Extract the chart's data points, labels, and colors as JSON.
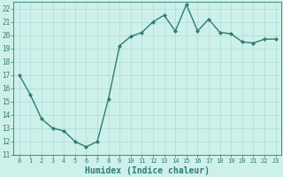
{
  "x": [
    0,
    1,
    2,
    3,
    4,
    5,
    6,
    7,
    8,
    9,
    10,
    11,
    12,
    13,
    14,
    15,
    16,
    17,
    18,
    19,
    20,
    21,
    22,
    23
  ],
  "y": [
    17.0,
    15.5,
    13.7,
    13.0,
    12.8,
    12.0,
    11.6,
    12.0,
    15.2,
    19.2,
    19.9,
    20.2,
    21.0,
    21.5,
    20.3,
    22.3,
    20.3,
    21.2,
    20.2,
    20.1,
    19.5,
    19.4,
    19.7,
    19.7
  ],
  "line_color": "#2e7d6e",
  "marker": "D",
  "marker_size": 2,
  "bg_color": "#cef0ea",
  "grid_color": "#aaddd6",
  "xlabel": "Humidex (Indice chaleur)",
  "ylim": [
    11,
    22.5
  ],
  "xlim": [
    -0.5,
    23.5
  ],
  "yticks": [
    11,
    12,
    13,
    14,
    15,
    16,
    17,
    18,
    19,
    20,
    21,
    22
  ],
  "xticks": [
    0,
    1,
    2,
    3,
    4,
    5,
    6,
    7,
    8,
    9,
    10,
    11,
    12,
    13,
    14,
    15,
    16,
    17,
    18,
    19,
    20,
    21,
    22,
    23
  ],
  "ytick_fontsize": 5.5,
  "xtick_fontsize": 5.0,
  "xlabel_fontsize": 7.0,
  "line_width": 1.0
}
